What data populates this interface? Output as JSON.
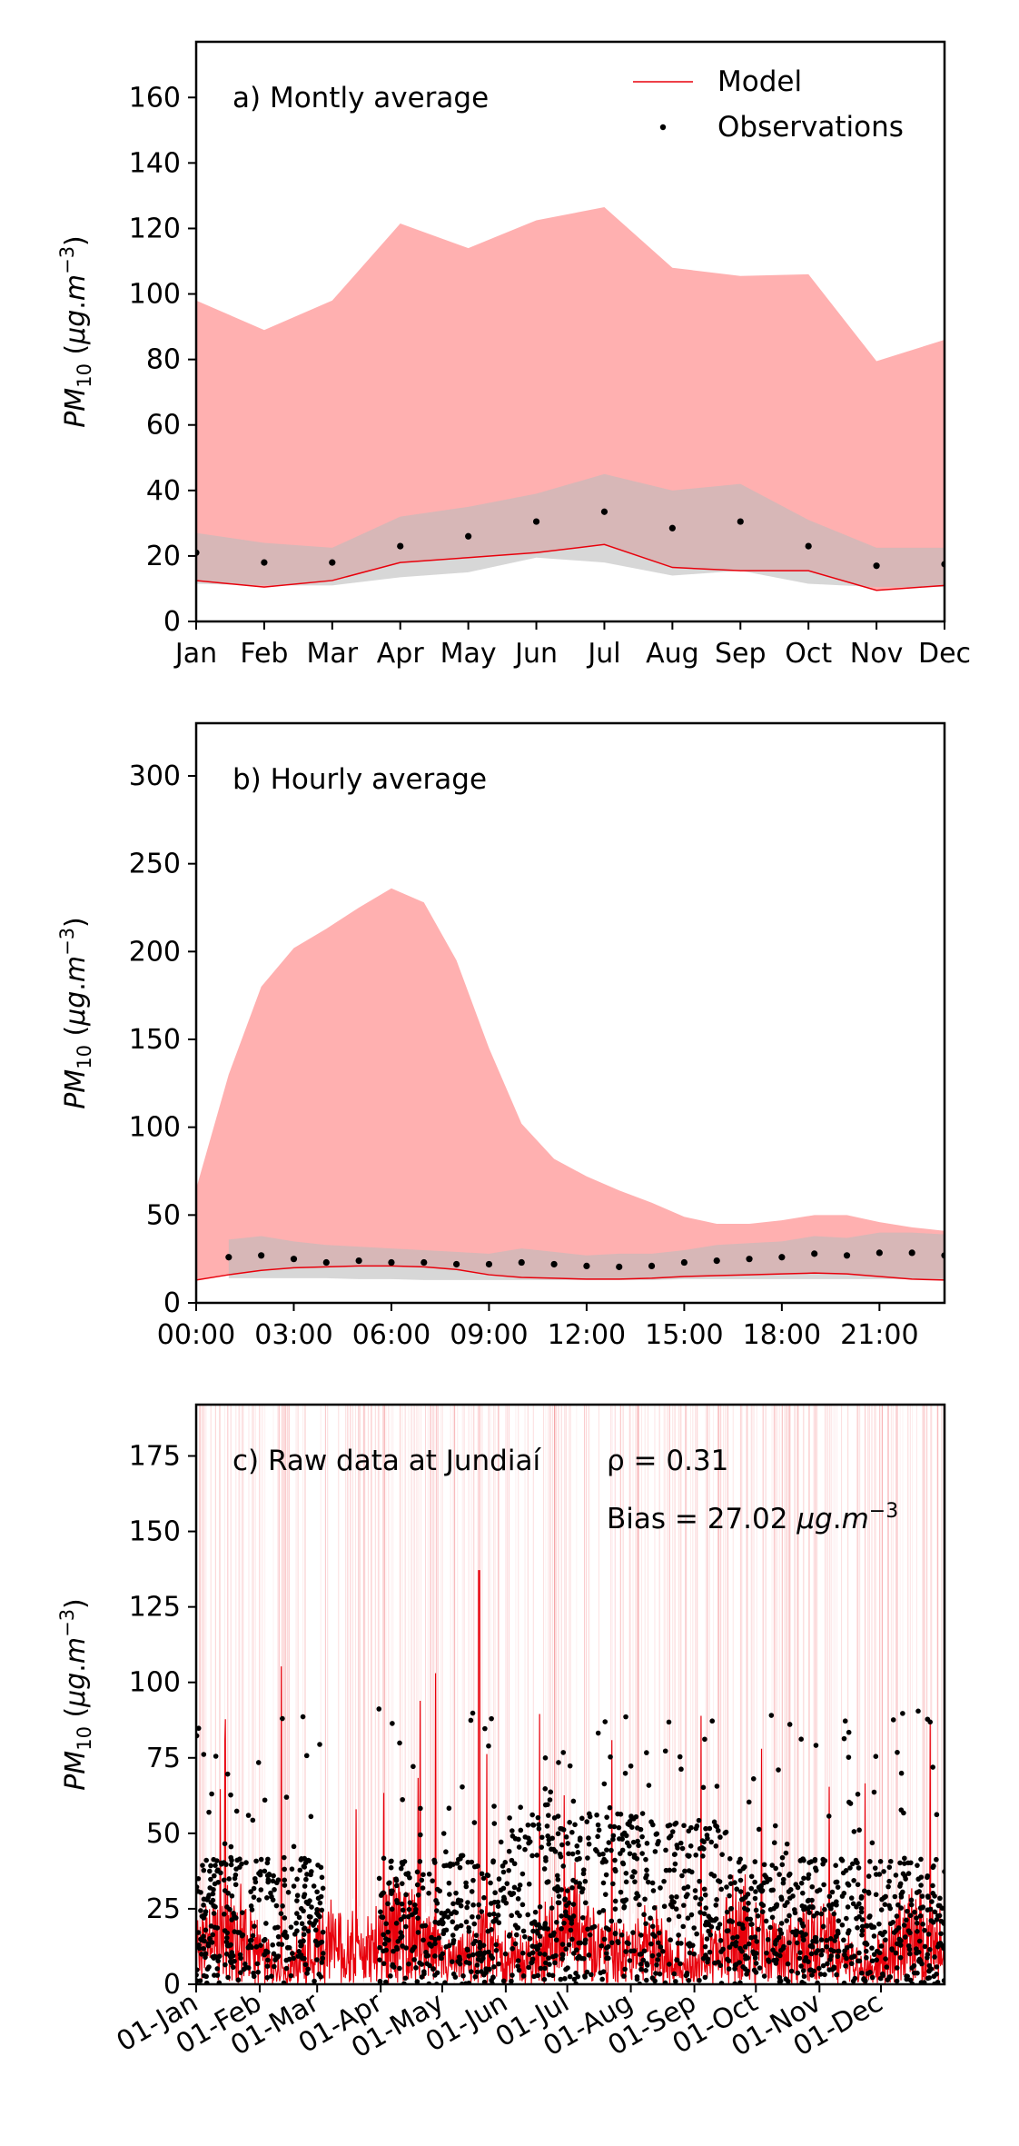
{
  "legend": {
    "model_label": "Model",
    "obs_label": "Observations"
  },
  "colors": {
    "model_line": "#e8000b",
    "model_fill": "#ffb0b0",
    "obs_fill": "#bdbdbd",
    "obs_point": "#000000"
  },
  "chart_data": [
    {
      "type": "line",
      "annotation": "a) Montly average",
      "ylabel": "PM10 (μg.m−3)",
      "ylim": [
        0,
        177
      ],
      "yticks": [
        0,
        20,
        40,
        60,
        80,
        100,
        120,
        140,
        160
      ],
      "categories": [
        "Jan",
        "Feb",
        "Mar",
        "Apr",
        "May",
        "Jun",
        "Jul",
        "Aug",
        "Sep",
        "Oct",
        "Nov",
        "Dec"
      ],
      "xlim": [
        0,
        11
      ],
      "legend": "top-right",
      "series": [
        {
          "name": "Model",
          "kind": "line",
          "values": [
            12.5,
            10.5,
            12.5,
            18,
            19.5,
            21,
            23.5,
            16.5,
            15.5,
            15.5,
            9.5,
            11
          ]
        },
        {
          "kind": "band-upper",
          "values": [
            98,
            89,
            98,
            121.5,
            114,
            122.5,
            126.5,
            108,
            105.5,
            106,
            79.5,
            86
          ]
        },
        {
          "kind": "obs-band-lower",
          "values": [
            11.5,
            11,
            11,
            13.5,
            15,
            19.5,
            18,
            14,
            15.5,
            11.5,
            10.5,
            10.5
          ]
        },
        {
          "kind": "obs-band-upper",
          "values": [
            27,
            24,
            22.5,
            32,
            35,
            39,
            45,
            40,
            42,
            31,
            22.5,
            22.5
          ]
        },
        {
          "name": "Observations",
          "kind": "points",
          "values": [
            21,
            18,
            18,
            23,
            26,
            30.5,
            33.5,
            28.5,
            30.5,
            23,
            17,
            17.5
          ]
        }
      ]
    },
    {
      "type": "line",
      "annotation": "b) Hourly average",
      "ylabel": "PM10 (μg.m−3)",
      "ylim": [
        0,
        330
      ],
      "yticks": [
        0,
        50,
        100,
        150,
        200,
        250,
        300
      ],
      "xtick_labels": [
        "00:00",
        "03:00",
        "06:00",
        "09:00",
        "12:00",
        "15:00",
        "18:00",
        "21:00"
      ],
      "xtick_values": [
        0,
        3,
        6,
        9,
        12,
        15,
        18,
        21
      ],
      "xlim": [
        0,
        23
      ],
      "x": [
        0,
        1,
        2,
        3,
        4,
        5,
        6,
        7,
        8,
        9,
        10,
        11,
        12,
        13,
        14,
        15,
        16,
        17,
        18,
        19,
        20,
        21,
        22,
        23
      ],
      "series": [
        {
          "name": "Model",
          "kind": "line",
          "values": [
            13,
            16,
            18.5,
            20,
            20.5,
            21,
            21,
            20.5,
            19,
            16,
            14.5,
            14,
            13.5,
            13.5,
            14,
            15,
            15.5,
            16,
            16.5,
            17,
            16.5,
            15,
            13.5,
            13
          ]
        },
        {
          "kind": "band-upper",
          "values": [
            65,
            130,
            180,
            202,
            213,
            225,
            236,
            228,
            195,
            145,
            102,
            82,
            72,
            64,
            57,
            49,
            45,
            45,
            47,
            50,
            50,
            46,
            43,
            41
          ]
        },
        {
          "kind": "obs-band-lower",
          "x": [
            1,
            2,
            3,
            4,
            5,
            6,
            7,
            8,
            9,
            10,
            11,
            12,
            13,
            14,
            15,
            16,
            17,
            18,
            19,
            20,
            21,
            22,
            23
          ],
          "values": [
            14,
            14,
            14,
            14,
            13.5,
            13.5,
            13,
            13,
            13,
            13,
            13,
            13,
            13,
            13,
            13.5,
            13.5,
            13.5,
            13.5,
            13.5,
            13.5,
            13.5,
            13.5,
            13.5
          ]
        },
        {
          "kind": "obs-band-upper",
          "x": [
            1,
            2,
            3,
            4,
            5,
            6,
            7,
            8,
            9,
            10,
            11,
            12,
            13,
            14,
            15,
            16,
            17,
            18,
            19,
            20,
            21,
            22,
            23
          ],
          "values": [
            36,
            38,
            35,
            33,
            32,
            31,
            30,
            29,
            28,
            31,
            29,
            27,
            28,
            28,
            30,
            33,
            34,
            35,
            38,
            37,
            40,
            40,
            39
          ]
        },
        {
          "name": "Observations",
          "kind": "points",
          "x": [
            1,
            2,
            3,
            4,
            5,
            6,
            7,
            8,
            9,
            10,
            11,
            12,
            13,
            14,
            15,
            16,
            17,
            18,
            19,
            20,
            21,
            22,
            23
          ],
          "values": [
            26,
            27,
            25,
            23,
            24,
            23,
            23,
            22,
            22,
            23,
            22,
            21,
            20.5,
            21,
            23,
            24,
            25,
            26,
            28,
            27,
            28.5,
            28.5,
            27
          ]
        }
      ]
    },
    {
      "type": "line",
      "annotation": "c) Raw data at Jundiaí",
      "stat_rho": "ρ = 0.31",
      "stat_bias": "Bias = 27.02 μg.m−3",
      "ylabel": "PM10 (μg.m−3)",
      "ylim": [
        0,
        192
      ],
      "yticks": [
        0,
        25,
        50,
        75,
        100,
        125,
        150,
        175
      ],
      "xtick_labels": [
        "01-Jan",
        "01-Feb",
        "01-Mar",
        "01-Apr",
        "01-May",
        "01-Jun",
        "01-Jul",
        "01-Aug",
        "01-Sep",
        "01-Oct",
        "01-Nov",
        "01-Dec"
      ],
      "xtick_values": [
        0,
        31,
        59,
        90,
        120,
        151,
        181,
        212,
        243,
        273,
        304,
        334
      ],
      "xlim": [
        0,
        365
      ],
      "xunit": "day of year",
      "series": [
        {
          "name": "Model",
          "kind": "hourly-line",
          "typical_range": [
            0,
            40
          ],
          "max": 137
        },
        {
          "name": "Observations",
          "kind": "hourly-points",
          "typical_range": [
            0,
            60
          ],
          "max": 92,
          "gap": [
            62,
            89
          ]
        }
      ]
    }
  ]
}
